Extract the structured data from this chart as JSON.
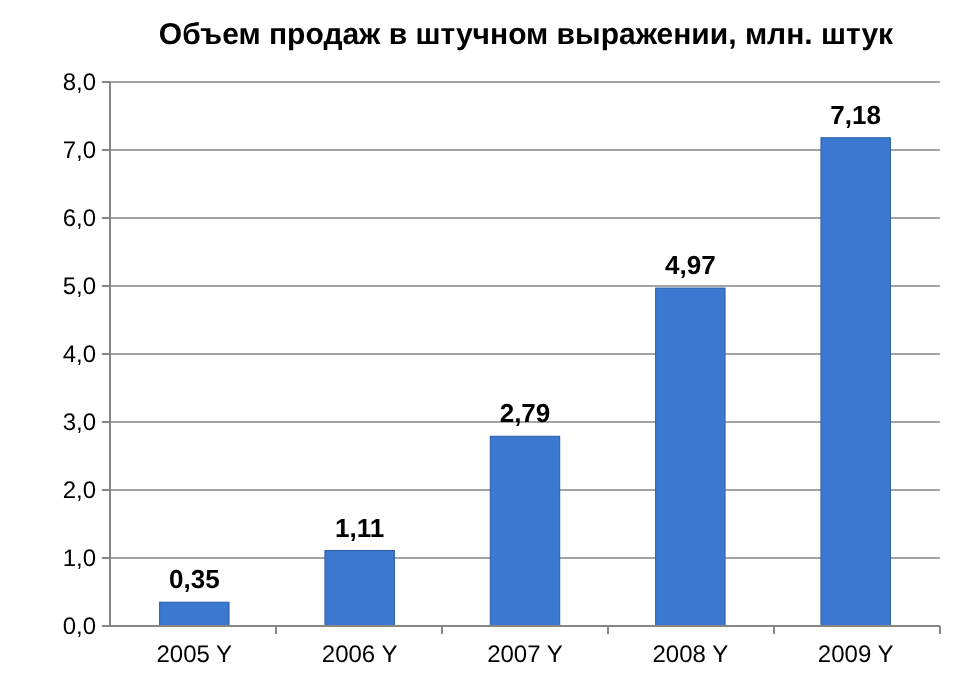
{
  "chart_data": {
    "type": "bar",
    "title": "Объем продаж в штучном выражении, млн. штук",
    "categories": [
      "2005 Y",
      "2006 Y",
      "2007 Y",
      "2008 Y",
      "2009 Y"
    ],
    "values": [
      0.35,
      1.11,
      2.79,
      4.97,
      7.18
    ],
    "value_labels": [
      "0,35",
      "1,11",
      "2,79",
      "4,97",
      "7,18"
    ],
    "color": "#3b78d0",
    "ylim": [
      0,
      8
    ],
    "yticks": [
      {
        "value": 0,
        "label": "0,0"
      },
      {
        "value": 1,
        "label": "1,0"
      },
      {
        "value": 2,
        "label": "2,0"
      },
      {
        "value": 3,
        "label": "3,0"
      },
      {
        "value": 4,
        "label": "4,0"
      },
      {
        "value": 5,
        "label": "5,0"
      },
      {
        "value": 6,
        "label": "6,0"
      },
      {
        "value": 7,
        "label": "7,0"
      },
      {
        "value": 8,
        "label": "8,0"
      }
    ],
    "grid": "y"
  }
}
